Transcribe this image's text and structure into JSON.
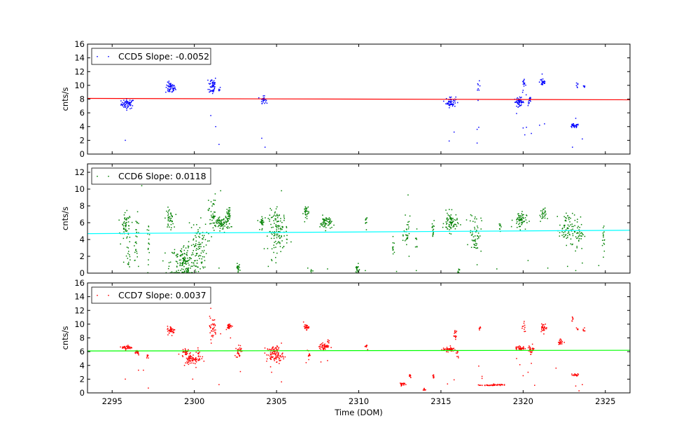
{
  "chart_data": [
    {
      "type": "scatter",
      "ylabel": "cnts/s",
      "ylim": [
        0,
        16
      ],
      "yticks": [
        "0",
        "2",
        "4",
        "6",
        "8",
        "10",
        "12",
        "14",
        "16"
      ],
      "xlim": [
        2293.5,
        2326.5
      ],
      "legend": {
        "label": "CCD5 Slope: -0.0052",
        "placement": "top-left"
      },
      "point_color": "#0000ff",
      "fit_color": "#ff0000",
      "fit_line": {
        "x": [
          2293.5,
          2326.5
        ],
        "y": [
          8.1,
          7.9
        ]
      },
      "clusters": [
        {
          "x": 2295.95,
          "y": 7.3,
          "sx": 0.2,
          "sy": 0.35,
          "n": 60
        },
        {
          "x": 2298.55,
          "y": 9.6,
          "sx": 0.15,
          "sy": 0.4,
          "n": 55
        },
        {
          "x": 2301.1,
          "y": 10.0,
          "sx": 0.12,
          "sy": 0.7,
          "n": 50
        },
        {
          "x": 2301.5,
          "y": 9.4,
          "sx": 0.05,
          "sy": 0.2,
          "n": 6
        },
        {
          "x": 2304.2,
          "y": 7.9,
          "sx": 0.08,
          "sy": 0.25,
          "n": 30
        },
        {
          "x": 2315.6,
          "y": 7.6,
          "sx": 0.15,
          "sy": 0.4,
          "n": 55
        },
        {
          "x": 2317.3,
          "y": 9.5,
          "sx": 0.04,
          "sy": 0.5,
          "n": 8
        },
        {
          "x": 2319.75,
          "y": 7.6,
          "sx": 0.15,
          "sy": 0.3,
          "n": 50
        },
        {
          "x": 2320.05,
          "y": 9.9,
          "sx": 0.06,
          "sy": 0.5,
          "n": 15
        },
        {
          "x": 2320.4,
          "y": 7.8,
          "sx": 0.05,
          "sy": 0.4,
          "n": 12
        },
        {
          "x": 2321.2,
          "y": 10.5,
          "sx": 0.1,
          "sy": 0.35,
          "n": 30
        },
        {
          "x": 2323.1,
          "y": 4.1,
          "sx": 0.15,
          "sy": 0.15,
          "n": 30
        },
        {
          "x": 2323.3,
          "y": 9.9,
          "sx": 0.04,
          "sy": 0.3,
          "n": 6
        },
        {
          "x": 2323.7,
          "y": 9.8,
          "sx": 0.04,
          "sy": 0.2,
          "n": 6
        }
      ],
      "outliers": [
        [
          2295.8,
          2.0
        ],
        [
          2301.0,
          5.6
        ],
        [
          2301.3,
          4.0
        ],
        [
          2301.5,
          1.4
        ],
        [
          2304.1,
          2.3
        ],
        [
          2304.3,
          1.0
        ],
        [
          2315.5,
          1.9
        ],
        [
          2315.8,
          3.2
        ],
        [
          2317.2,
          3.6
        ],
        [
          2317.3,
          3.9
        ],
        [
          2317.2,
          1.6
        ],
        [
          2319.6,
          5.9
        ],
        [
          2320.0,
          3.8
        ],
        [
          2320.1,
          2.8
        ],
        [
          2320.2,
          3.9
        ],
        [
          2320.5,
          3.0
        ],
        [
          2321.0,
          4.2
        ],
        [
          2321.3,
          4.4
        ],
        [
          2323.0,
          1.0
        ],
        [
          2323.2,
          5.2
        ],
        [
          2323.6,
          2.2
        ]
      ]
    },
    {
      "type": "scatter",
      "ylabel": "cnts/s",
      "ylim": [
        0,
        13
      ],
      "yticks": [
        "0",
        "2",
        "4",
        "6",
        "8",
        "10",
        "12"
      ],
      "xlim": [
        2293.5,
        2326.5
      ],
      "legend": {
        "label": "CCD6 Slope: 0.0118",
        "placement": "top-left"
      },
      "point_color": "#008000",
      "fit_color": "#00ffff",
      "fit_line": {
        "x": [
          2293.5,
          2326.5
        ],
        "y": [
          4.7,
          5.1
        ]
      },
      "clusters": [
        {
          "x": 2295.85,
          "y": 5.5,
          "sx": 0.15,
          "sy": 0.8,
          "n": 55
        },
        {
          "x": 2296.0,
          "y": 2.2,
          "sx": 0.06,
          "sy": 0.8,
          "n": 15
        },
        {
          "x": 2296.5,
          "y": 4.2,
          "sx": 0.08,
          "sy": 1.3,
          "n": 25
        },
        {
          "x": 2297.2,
          "y": 4.0,
          "sx": 0.05,
          "sy": 1.0,
          "n": 15
        },
        {
          "x": 2298.5,
          "y": 6.5,
          "sx": 0.12,
          "sy": 0.6,
          "n": 40
        },
        {
          "x": 2299.4,
          "y": 1.2,
          "sx": 0.45,
          "sy": 1.1,
          "n": 170
        },
        {
          "x": 2300.2,
          "y": 3.3,
          "sx": 0.3,
          "sy": 1.4,
          "n": 80
        },
        {
          "x": 2301.1,
          "y": 7.0,
          "sx": 0.12,
          "sy": 1.2,
          "n": 40
        },
        {
          "x": 2301.7,
          "y": 5.9,
          "sx": 0.25,
          "sy": 0.4,
          "n": 80
        },
        {
          "x": 2302.1,
          "y": 7.1,
          "sx": 0.06,
          "sy": 0.4,
          "n": 25
        },
        {
          "x": 2302.65,
          "y": 0.6,
          "sx": 0.06,
          "sy": 0.25,
          "n": 18
        },
        {
          "x": 2304.1,
          "y": 6.1,
          "sx": 0.08,
          "sy": 0.4,
          "n": 25
        },
        {
          "x": 2305.1,
          "y": 5.0,
          "sx": 0.3,
          "sy": 1.2,
          "n": 130
        },
        {
          "x": 2306.8,
          "y": 7.2,
          "sx": 0.08,
          "sy": 0.5,
          "n": 30
        },
        {
          "x": 2307.1,
          "y": 0.3,
          "sx": 0.04,
          "sy": 0.12,
          "n": 6
        },
        {
          "x": 2308.0,
          "y": 6.0,
          "sx": 0.18,
          "sy": 0.4,
          "n": 55
        },
        {
          "x": 2309.9,
          "y": 0.5,
          "sx": 0.06,
          "sy": 0.25,
          "n": 18
        },
        {
          "x": 2310.45,
          "y": 6.4,
          "sx": 0.04,
          "sy": 0.5,
          "n": 10
        },
        {
          "x": 2312.1,
          "y": 3.0,
          "sx": 0.04,
          "sy": 0.5,
          "n": 10
        },
        {
          "x": 2312.95,
          "y": 4.5,
          "sx": 0.1,
          "sy": 1.0,
          "n": 30
        },
        {
          "x": 2313.5,
          "y": 3.8,
          "sx": 0.04,
          "sy": 0.5,
          "n": 8
        },
        {
          "x": 2314.5,
          "y": 4.8,
          "sx": 0.05,
          "sy": 0.8,
          "n": 15
        },
        {
          "x": 2315.6,
          "y": 6.0,
          "sx": 0.2,
          "sy": 0.6,
          "n": 75
        },
        {
          "x": 2316.05,
          "y": 0.3,
          "sx": 0.04,
          "sy": 0.12,
          "n": 8
        },
        {
          "x": 2317.1,
          "y": 4.8,
          "sx": 0.18,
          "sy": 1.2,
          "n": 55
        },
        {
          "x": 2318.6,
          "y": 5.8,
          "sx": 0.04,
          "sy": 0.6,
          "n": 8
        },
        {
          "x": 2319.8,
          "y": 6.3,
          "sx": 0.2,
          "sy": 0.5,
          "n": 60
        },
        {
          "x": 2321.2,
          "y": 6.9,
          "sx": 0.1,
          "sy": 0.4,
          "n": 25
        },
        {
          "x": 2322.6,
          "y": 5.3,
          "sx": 0.2,
          "sy": 0.9,
          "n": 55
        },
        {
          "x": 2323.3,
          "y": 4.8,
          "sx": 0.2,
          "sy": 1.0,
          "n": 50
        },
        {
          "x": 2324.9,
          "y": 4.3,
          "sx": 0.05,
          "sy": 1.0,
          "n": 15
        }
      ],
      "outliers": [
        [
          2296.8,
          10.4
        ],
        [
          2300.9,
          11.0
        ],
        [
          2301.6,
          9.8
        ],
        [
          2295.7,
          1.3
        ],
        [
          2296.6,
          0.8
        ],
        [
          2297.2,
          1.0
        ],
        [
          2301.5,
          0.6
        ],
        [
          2304.5,
          0.8
        ],
        [
          2305.3,
          9.8
        ],
        [
          2306.9,
          0.6
        ],
        [
          2308.1,
          0.5
        ],
        [
          2313.0,
          9.3
        ],
        [
          2313.5,
          0.3
        ],
        [
          2317.2,
          1.0
        ],
        [
          2318.4,
          0.5
        ],
        [
          2320.3,
          1.5
        ],
        [
          2321.5,
          0.6
        ],
        [
          2322.7,
          0.8
        ],
        [
          2323.2,
          0.3
        ],
        [
          2323.6,
          1.2
        ],
        [
          2324.6,
          0.9
        ],
        [
          2310.4,
          0.3
        ],
        [
          2312.3,
          0.2
        ]
      ]
    },
    {
      "type": "scatter",
      "xlabel": "Time (DOM)",
      "ylabel": "cnts/s",
      "ylim": [
        0,
        16
      ],
      "yticks": [
        "0",
        "2",
        "4",
        "6",
        "8",
        "10",
        "12",
        "14",
        "16"
      ],
      "xlim": [
        2293.5,
        2326.5
      ],
      "xticks": [
        {
          "value": 2295,
          "label": "2295"
        },
        {
          "value": 2300,
          "label": "2300"
        },
        {
          "value": 2305,
          "label": "2305"
        },
        {
          "value": 2310,
          "label": "2310"
        },
        {
          "value": 2315,
          "label": "2315"
        },
        {
          "value": 2320,
          "label": "2320"
        },
        {
          "value": 2325,
          "label": "2325"
        }
      ],
      "legend": {
        "label": "CCD7 Slope: 0.0037",
        "placement": "top-left"
      },
      "point_color": "#ff0000",
      "fit_color": "#00ff00",
      "fit_line": {
        "x": [
          2293.5,
          2326.5
        ],
        "y": [
          6.1,
          6.2
        ]
      },
      "clusters": [
        {
          "x": 2295.9,
          "y": 6.6,
          "sx": 0.15,
          "sy": 0.15,
          "n": 40
        },
        {
          "x": 2296.5,
          "y": 5.9,
          "sx": 0.1,
          "sy": 0.2,
          "n": 20
        },
        {
          "x": 2297.15,
          "y": 5.6,
          "sx": 0.04,
          "sy": 0.3,
          "n": 8
        },
        {
          "x": 2298.6,
          "y": 9.1,
          "sx": 0.12,
          "sy": 0.3,
          "n": 40
        },
        {
          "x": 2299.5,
          "y": 5.9,
          "sx": 0.12,
          "sy": 0.3,
          "n": 30
        },
        {
          "x": 2299.9,
          "y": 4.9,
          "sx": 0.25,
          "sy": 0.35,
          "n": 70
        },
        {
          "x": 2300.25,
          "y": 5.8,
          "sx": 0.06,
          "sy": 0.3,
          "n": 12
        },
        {
          "x": 2301.1,
          "y": 9.4,
          "sx": 0.12,
          "sy": 0.8,
          "n": 35
        },
        {
          "x": 2302.1,
          "y": 9.7,
          "sx": 0.1,
          "sy": 0.2,
          "n": 30
        },
        {
          "x": 2302.7,
          "y": 6.1,
          "sx": 0.08,
          "sy": 0.5,
          "n": 30
        },
        {
          "x": 2304.9,
          "y": 5.6,
          "sx": 0.25,
          "sy": 0.6,
          "n": 110
        },
        {
          "x": 2306.8,
          "y": 9.6,
          "sx": 0.08,
          "sy": 0.2,
          "n": 25
        },
        {
          "x": 2306.95,
          "y": 5.6,
          "sx": 0.05,
          "sy": 0.3,
          "n": 12
        },
        {
          "x": 2307.9,
          "y": 6.7,
          "sx": 0.15,
          "sy": 0.25,
          "n": 45
        },
        {
          "x": 2308.15,
          "y": 7.5,
          "sx": 0.04,
          "sy": 0.2,
          "n": 6
        },
        {
          "x": 2310.45,
          "y": 6.8,
          "sx": 0.04,
          "sy": 0.2,
          "n": 8
        },
        {
          "x": 2312.6,
          "y": 1.3,
          "sx": 0.08,
          "sy": 0.1,
          "n": 20
        },
        {
          "x": 2313.1,
          "y": 2.4,
          "sx": 0.05,
          "sy": 0.2,
          "n": 10
        },
        {
          "x": 2314.0,
          "y": 0.5,
          "sx": 0.04,
          "sy": 0.1,
          "n": 8
        },
        {
          "x": 2314.55,
          "y": 2.4,
          "sx": 0.04,
          "sy": 0.2,
          "n": 8
        },
        {
          "x": 2315.5,
          "y": 6.3,
          "sx": 0.2,
          "sy": 0.15,
          "n": 50
        },
        {
          "x": 2315.85,
          "y": 8.7,
          "sx": 0.06,
          "sy": 0.5,
          "n": 15
        },
        {
          "x": 2316.0,
          "y": 5.6,
          "sx": 0.04,
          "sy": 0.3,
          "n": 8
        },
        {
          "x": 2317.35,
          "y": 9.2,
          "sx": 0.04,
          "sy": 0.2,
          "n": 6
        },
        {
          "x": 2317.9,
          "y": 1.1,
          "sx": 0.3,
          "sy": 0.03,
          "n": 30
        },
        {
          "x": 2318.5,
          "y": 1.2,
          "sx": 0.15,
          "sy": 0.05,
          "n": 20
        },
        {
          "x": 2319.8,
          "y": 6.5,
          "sx": 0.15,
          "sy": 0.15,
          "n": 40
        },
        {
          "x": 2320.05,
          "y": 9.6,
          "sx": 0.05,
          "sy": 0.4,
          "n": 10
        },
        {
          "x": 2320.5,
          "y": 6.3,
          "sx": 0.1,
          "sy": 0.35,
          "n": 30
        },
        {
          "x": 2321.25,
          "y": 9.5,
          "sx": 0.1,
          "sy": 0.3,
          "n": 30
        },
        {
          "x": 2322.3,
          "y": 7.4,
          "sx": 0.08,
          "sy": 0.2,
          "n": 20
        },
        {
          "x": 2323.0,
          "y": 10.8,
          "sx": 0.03,
          "sy": 0.2,
          "n": 6
        },
        {
          "x": 2323.2,
          "y": 2.6,
          "sx": 0.12,
          "sy": 0.1,
          "n": 20
        },
        {
          "x": 2323.3,
          "y": 9.2,
          "sx": 0.04,
          "sy": 0.2,
          "n": 6
        },
        {
          "x": 2323.7,
          "y": 9.2,
          "sx": 0.04,
          "sy": 0.2,
          "n": 6
        }
      ],
      "outliers": [
        [
          2295.8,
          2.0
        ],
        [
          2296.6,
          3.3
        ],
        [
          2296.9,
          3.3
        ],
        [
          2297.2,
          0.7
        ],
        [
          2299.4,
          4.0
        ],
        [
          2299.9,
          2.0
        ],
        [
          2300.1,
          3.7
        ],
        [
          2301.0,
          12.3
        ],
        [
          2301.5,
          1.2
        ],
        [
          2301.6,
          8.6
        ],
        [
          2302.2,
          8.0
        ],
        [
          2302.8,
          3.1
        ],
        [
          2304.7,
          3.0
        ],
        [
          2305.3,
          1.6
        ],
        [
          2306.8,
          4.4
        ],
        [
          2307.7,
          4.5
        ],
        [
          2308.1,
          4.7
        ],
        [
          2315.4,
          1.3
        ],
        [
          2315.8,
          1.9
        ],
        [
          2317.3,
          3.9
        ],
        [
          2317.5,
          2.4
        ],
        [
          2317.5,
          2.1
        ],
        [
          2319.6,
          5.0
        ],
        [
          2319.8,
          4.1
        ],
        [
          2320.0,
          2.5
        ],
        [
          2320.3,
          3.0
        ],
        [
          2320.5,
          4.3
        ],
        [
          2320.7,
          1.1
        ],
        [
          2322.0,
          3.6
        ],
        [
          2323.2,
          1.0
        ],
        [
          2323.4,
          0.3
        ],
        [
          2323.6,
          1.2
        ]
      ]
    }
  ]
}
